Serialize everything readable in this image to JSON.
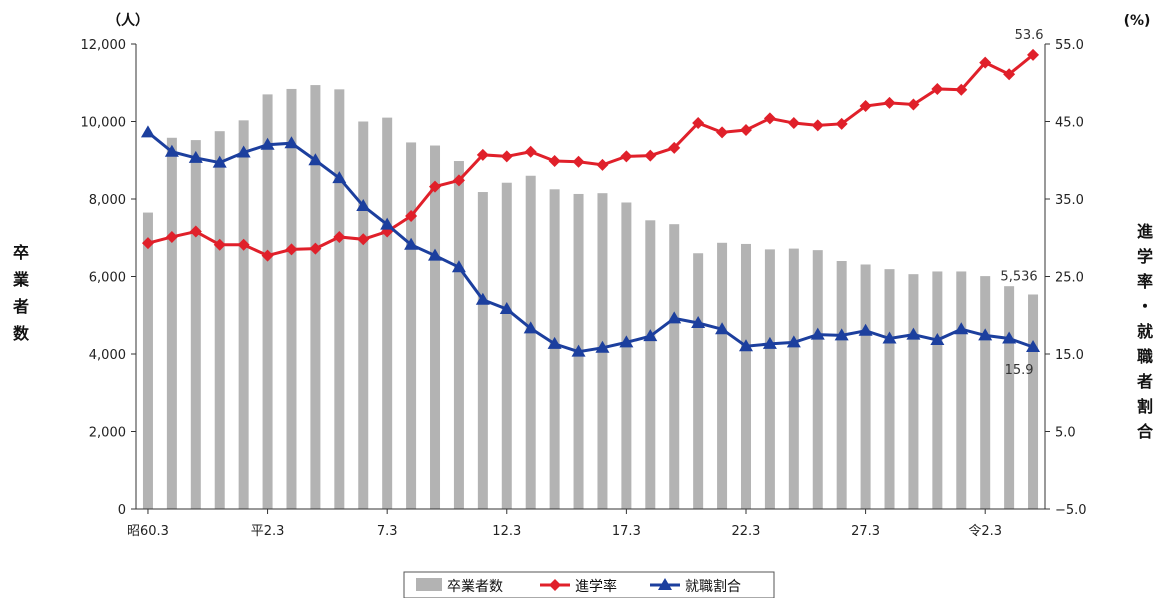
{
  "chart_data": {
    "type": "bar+line",
    "left_unit": "（人）",
    "right_unit": "(%)",
    "left_label": "卒業者数",
    "right_label": "進学率・就職者割合",
    "x_tick_labels": [
      "昭60.3",
      "平2.3",
      "7.3",
      "12.3",
      "17.3",
      "22.3",
      "27.3",
      "令2.3"
    ],
    "left_axis": {
      "min": 0,
      "max": 12000,
      "ticks": [
        "0",
        "2,000",
        "4,000",
        "6,000",
        "8,000",
        "10,000",
        "12,000"
      ]
    },
    "right_axis": {
      "min": -5,
      "max": 55,
      "ticks": [
        "-5.0",
        "5.0",
        "15.0",
        "25.0",
        "35.0",
        "45.0",
        "55.0"
      ]
    },
    "series": [
      {
        "name": "卒業者数",
        "kind": "bar",
        "color": "#b3b3b3",
        "values": [
          7650,
          9580,
          9520,
          9750,
          10030,
          10700,
          10840,
          10940,
          10830,
          10000,
          10100,
          9460,
          9380,
          8980,
          8180,
          8420,
          8600,
          8250,
          8130,
          8150,
          7910,
          7450,
          7350,
          6600,
          6870,
          6840,
          6700,
          6720,
          6680,
          6400,
          6310,
          6190,
          6060,
          6130,
          6130,
          6010,
          5750,
          5536
        ]
      },
      {
        "name": "進学率",
        "kind": "line",
        "color": "#e0202a",
        "marker": "diamond",
        "values": [
          29.3,
          30.1,
          30.8,
          29.1,
          29.1,
          27.7,
          28.5,
          28.6,
          30.1,
          29.8,
          30.8,
          32.8,
          36.6,
          37.4,
          40.7,
          40.5,
          41.1,
          39.9,
          39.8,
          39.4,
          40.5,
          40.6,
          41.6,
          44.8,
          43.6,
          43.9,
          45.4,
          44.8,
          44.5,
          44.7,
          47.0,
          47.4,
          47.2,
          49.2,
          49.1,
          52.6,
          51.1,
          53.6
        ]
      },
      {
        "name": "就職割合",
        "kind": "line",
        "color": "#1c3f9e",
        "marker": "triangle",
        "values": [
          43.6,
          41.1,
          40.3,
          39.7,
          41.0,
          42.0,
          42.2,
          40.0,
          37.7,
          34.1,
          31.7,
          29.1,
          27.7,
          26.2,
          22.0,
          20.8,
          18.3,
          16.3,
          15.3,
          15.8,
          16.5,
          17.3,
          19.6,
          19.0,
          18.2,
          16.0,
          16.3,
          16.5,
          17.5,
          17.4,
          18.0,
          17.0,
          17.5,
          16.8,
          18.2,
          17.4,
          17.0,
          15.9
        ]
      }
    ],
    "annotations": [
      {
        "series": "進学率",
        "index": 37,
        "text": "53.6"
      },
      {
        "series": "卒業者数",
        "index": 37,
        "text": "5,536"
      },
      {
        "series": "就職割合",
        "index": 37,
        "text": "15.9"
      }
    ],
    "legend_position": "bottom",
    "grid": false
  }
}
